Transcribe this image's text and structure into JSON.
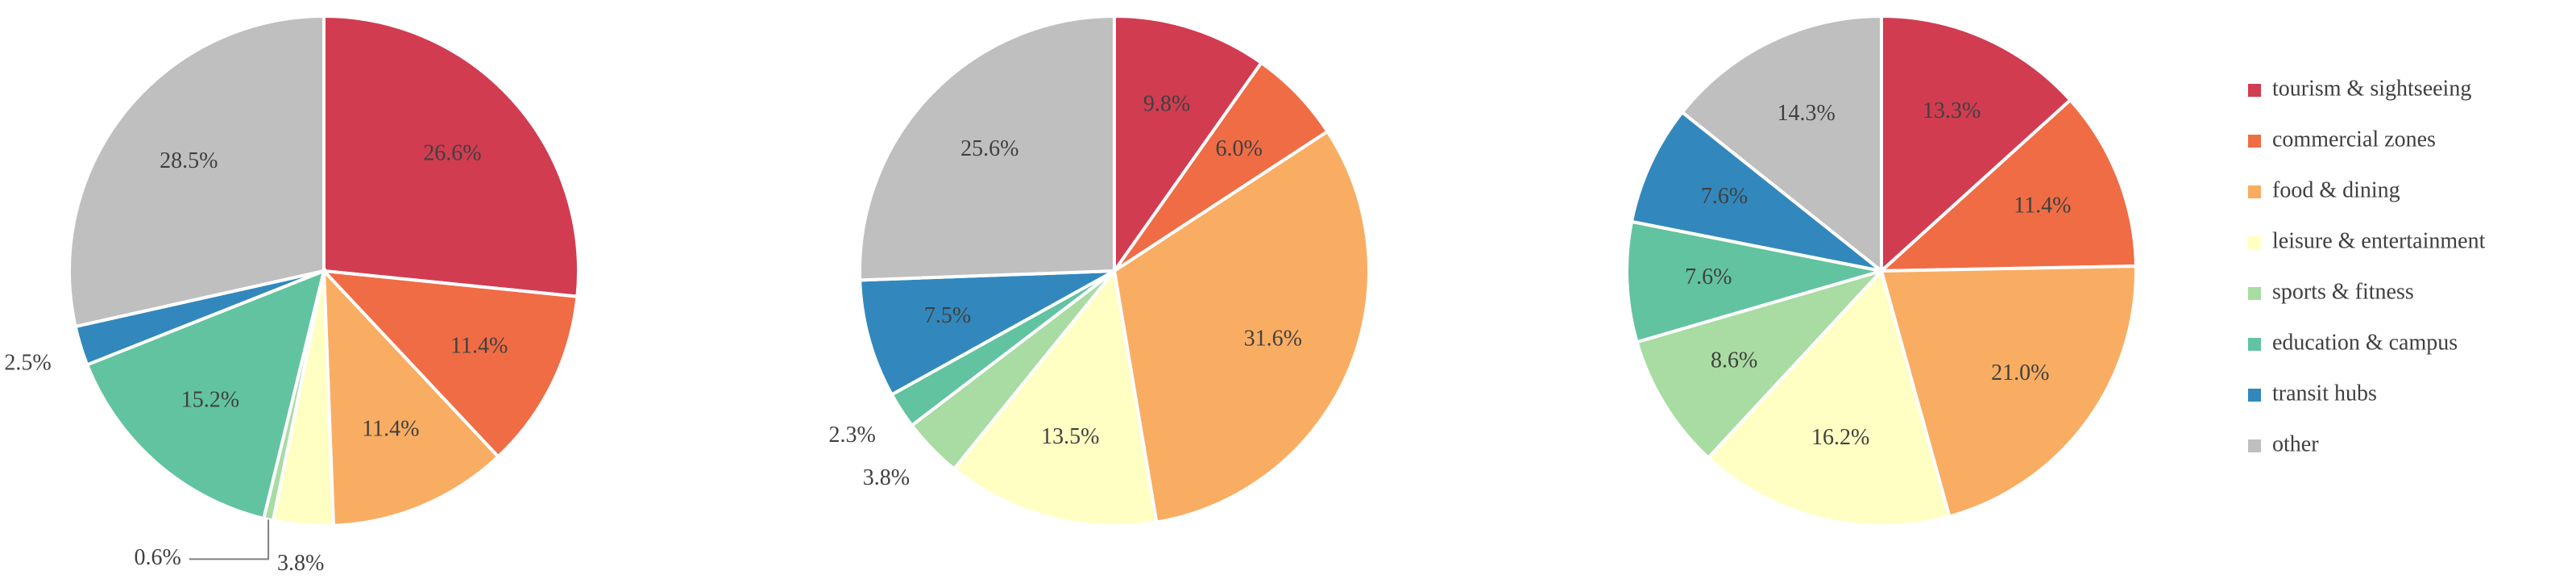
{
  "chart_data": [
    {
      "type": "pie",
      "categories": [
        "tourism & sightseeing",
        "commercial zones",
        "food & dining",
        "leisure & entertainment",
        "sports & fitness",
        "education & campus",
        "transit hubs",
        "other"
      ],
      "colors": [
        "#d13c51",
        "#f06c45",
        "#f9ad62",
        "#ffffc4",
        "#a8dca2",
        "#62c3a1",
        "#3288bd",
        "#bfbfbf"
      ],
      "legend": "right",
      "values": [
        26.6,
        11.4,
        11.4,
        3.8,
        0.6,
        15.2,
        2.5,
        28.5
      ],
      "value_labels": [
        "26.6%",
        "11.4%",
        "11.4%",
        "3.8%",
        "0.6%",
        "15.2%",
        "2.5%",
        "28.5%"
      ]
    },
    {
      "type": "pie",
      "values": [
        9.8,
        6.0,
        31.6,
        13.5,
        3.8,
        2.3,
        7.5,
        25.6
      ],
      "value_labels": [
        "9.8%",
        "6.0%",
        "31.6%",
        "13.5%",
        "3.8%",
        "2.3%",
        "7.5%",
        "25.6%"
      ]
    },
    {
      "type": "pie",
      "values": [
        13.3,
        11.4,
        21.0,
        16.2,
        8.6,
        7.6,
        7.6,
        14.3
      ],
      "value_labels": [
        "13.3%",
        "11.4%",
        "21.0%",
        "16.2%",
        "8.6%",
        "7.6%",
        "7.6%",
        "14.3%"
      ]
    }
  ]
}
